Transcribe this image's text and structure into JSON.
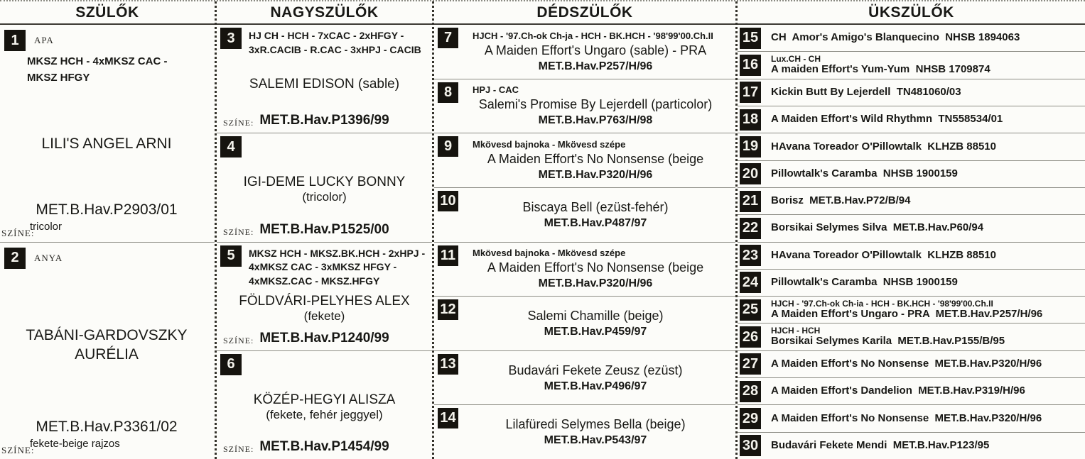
{
  "accent_colors": {
    "badge_bg": "#16140f",
    "badge_text": "#f4f3ec",
    "paper": "#fcfcf9",
    "ink": "#181815"
  },
  "columns": [
    {
      "id": "parents",
      "header": "SZÜLŐK",
      "cells": [
        {
          "num": "1",
          "role": "APA",
          "titles": "MKSZ HCH - 4xMKSZ CAC - MKSZ HFGY",
          "name": "LILI'S ANGEL ARNI",
          "reg": "MET.B.Hav.P2903/01",
          "color_label": "SZÍNE:",
          "color_value": "tricolor"
        },
        {
          "num": "2",
          "role": "ANYA",
          "titles": "",
          "name": "TABÁNI-GARDOVSZKY AURÉLIA",
          "reg": "MET.B.Hav.P3361/02",
          "color_label": "SZÍNE:",
          "color_value": "fekete-beige rajzos"
        }
      ]
    },
    {
      "id": "grandparents",
      "header": "NAGYSZÜLŐK",
      "cells": [
        {
          "num": "3",
          "titles": "HJ CH - HCH - 7xCAC - 2xHFGY - 3xR.CACIB - R.CAC - 3xHPJ - CACIB",
          "name": "SALEMI EDISON (sable)",
          "name2": "",
          "reg": "MET.B.Hav.P1396/99",
          "color_label": "SZÍNE:"
        },
        {
          "num": "4",
          "titles": "",
          "name": "IGI-DEME LUCKY BONNY",
          "name2": "(tricolor)",
          "reg": "MET.B.Hav.P1525/00",
          "color_label": "SZÍNE:"
        },
        {
          "num": "5",
          "titles": "MKSZ HCH - MKSZ.BK.HCH - 2xHPJ - 4xMKSZ CAC - 3xMKSZ HFGY - 4xMKSZ.CAC - MKSZ.HFGY",
          "name": "FÖLDVÁRI-PELYHES ALEX",
          "name2": "(fekete)",
          "reg": "MET.B.Hav.P1240/99",
          "color_label": "SZÍNE:"
        },
        {
          "num": "6",
          "titles": "",
          "name": "KÖZÉP-HEGYI ALISZA",
          "name2": "(fekete, fehér jeggyel)",
          "reg": "MET.B.Hav.P1454/99",
          "color_label": "SZÍNE:"
        }
      ]
    },
    {
      "id": "great-grandparents",
      "header": "DÉDSZÜLŐK",
      "cells": [
        {
          "num": "7",
          "titles": "HJCH - '97.Ch-ok Ch-ja - HCH - BK.HCH - '98'99'00.Ch.II",
          "name": "A Maiden Effort's Ungaro (sable) - PRA",
          "reg": "MET.B.Hav.P257/H/96"
        },
        {
          "num": "8",
          "titles": "HPJ - CAC",
          "name": "Salemi's Promise By Lejerdell (particolor)",
          "reg": "MET.B.Hav.P763/H/98"
        },
        {
          "num": "9",
          "titles": "Mkövesd bajnoka - Mkövesd szépe",
          "name": "A Maiden Effort's No Nonsense (beige",
          "reg": "MET.B.Hav.P320/H/96"
        },
        {
          "num": "10",
          "titles": "",
          "name": "Biscaya Bell (ezüst-fehér)",
          "reg": "MET.B.Hav.P487/97"
        },
        {
          "num": "11",
          "titles": "Mkövesd bajnoka - Mkövesd szépe",
          "name": "A Maiden Effort's No Nonsense (beige",
          "reg": "MET.B.Hav.P320/H/96"
        },
        {
          "num": "12",
          "titles": "",
          "name": "Salemi Chamille (beige)",
          "reg": "MET.B.Hav.P459/97"
        },
        {
          "num": "13",
          "titles": "",
          "name": "Budavári Fekete Zeusz (ezüst)",
          "reg": "MET.B.Hav.P496/97"
        },
        {
          "num": "14",
          "titles": "",
          "name": "Lilafüredi Selymes Bella (beige)",
          "reg": "MET.B.Hav.P543/97"
        }
      ]
    },
    {
      "id": "great-great-grandparents",
      "header": "ÜKSZÜLŐK",
      "cells": [
        {
          "num": "15",
          "line1": "",
          "line2": "CH  Amor's Amigo's Blanquecino  NHSB 1894063"
        },
        {
          "num": "16",
          "line1": "Lux.CH - CH",
          "line2": "A maiden Effort's Yum-Yum  NHSB 1709874"
        },
        {
          "num": "17",
          "line1": "",
          "line2": "Kickin Butt By Lejerdell  TN481060/03"
        },
        {
          "num": "18",
          "line1": "",
          "line2": "A Maiden Effort's Wild Rhythmn  TN558534/01"
        },
        {
          "num": "19",
          "line1": "",
          "line2": "HAvana Toreador O'Pillowtalk  KLHZB 88510"
        },
        {
          "num": "20",
          "line1": "",
          "line2": "Pillowtalk's Caramba  NHSB 1900159"
        },
        {
          "num": "21",
          "line1": "",
          "line2": "Borisz  MET.B.Hav.P72/B/94"
        },
        {
          "num": "22",
          "line1": "",
          "line2": "Borsikai Selymes Silva  MET.B.Hav.P60/94"
        },
        {
          "num": "23",
          "line1": "",
          "line2": "HAvana Toreador O'Pillowtalk  KLHZB 88510"
        },
        {
          "num": "24",
          "line1": "",
          "line2": "Pillowtalk's Caramba  NHSB 1900159"
        },
        {
          "num": "25",
          "line1": "HJCH - '97.Ch-ok Ch-ia - HCH - BK.HCH - '98'99'00.Ch.II",
          "line2": "A Maiden Effort's Ungaro - PRA  MET.B.Hav.P257/H/96"
        },
        {
          "num": "26",
          "line1": "HJCH - HCH",
          "line2": "Borsikai Selymes Karila  MET.B.Hav.P155/B/95"
        },
        {
          "num": "27",
          "line1": "",
          "line2": "A Maiden Effort's No Nonsense  MET.B.Hav.P320/H/96"
        },
        {
          "num": "28",
          "line1": "",
          "line2": "A Maiden Effort's Dandelion  MET.B.Hav.P319/H/96"
        },
        {
          "num": "29",
          "line1": "",
          "line2": "A Maiden Effort's No Nonsense  MET.B.Hav.P320/H/96"
        },
        {
          "num": "30",
          "line1": "",
          "line2": "Budavári Fekete Mendi  MET.B.Hav.P123/95"
        }
      ]
    }
  ]
}
